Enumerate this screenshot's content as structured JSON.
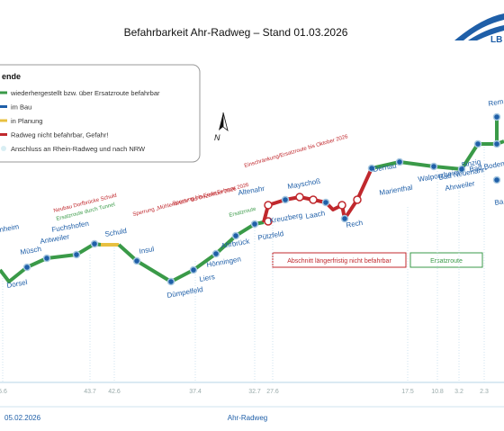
{
  "header": {
    "title": "Befahrbarkeit Ahr-Radweg – Stand 01.03.2026",
    "logo": "LB"
  },
  "legend": {
    "title": "ende",
    "items": [
      "wiederhergestellt bzw. über Ersatzroute befahrbar",
      "im Bau",
      "in Planung",
      "Radweg nicht befahrbar, Gefahr!",
      "Anschluss an Rhein-Radweg und nach NRW"
    ]
  },
  "north": "N",
  "stations": [
    "nheim",
    "Dorsel",
    "Müsch",
    "Antweiler",
    "Fuchshofen",
    "Schuld",
    "Insul",
    "Dümpelfeld",
    "Liers",
    "Hönningen",
    "Ahrbrück",
    "Pützfeld",
    "Kreuzberg",
    "Altenahr",
    "Mayschoß",
    "Laach",
    "Rech",
    "Dernau",
    "Marienthal",
    "Walporzheim",
    "Bad Neuenahr-",
    "Ahrweiler",
    "Sinzig",
    "Bad Bodendorf",
    "Rem",
    "Ba"
  ],
  "annotations": [
    "Neubau Dorfbrücke Schuld",
    "Ersatzroute durch Tunnel",
    "Sperrung „Mühlenbrück“ bis Dezember 2026",
    "Sperrung bis Ende Februar 2026",
    "Ersatzroute",
    "Einschränkung/Ersatzroute bis Oktober 2026"
  ],
  "boxes": [
    "Abschnitt längerfristig nicht befahrbar",
    "Ersatzroute"
  ],
  "km": [
    "5.6",
    "43.7",
    "42.6",
    "37.4",
    "32.7",
    "27.6",
    "17.5",
    "10.8",
    "3.2",
    "2.3"
  ],
  "footer": {
    "date": "05.02.2026",
    "name": "Ahr-Radweg"
  }
}
